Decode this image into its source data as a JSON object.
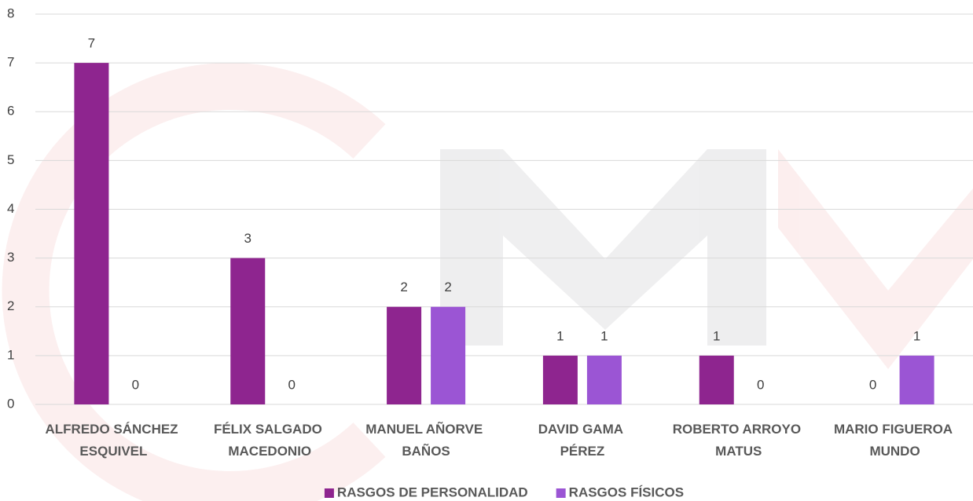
{
  "chart_data": {
    "type": "bar",
    "categories": [
      "ALFREDO SÁNCHEZ ESQUIVEL",
      "FÉLIX SALGADO MACEDONIO",
      "MANUEL AÑORVE BAÑOS",
      "DAVID GAMA PÉREZ",
      "ROBERTO ARROYO MATUS",
      "MARIO FIGUEROA MUNDO"
    ],
    "series": [
      {
        "name": "RASGOS DE PERSONALIDAD",
        "color": "#8e258f",
        "values": [
          7,
          3,
          2,
          1,
          1,
          0
        ]
      },
      {
        "name": "RASGOS FÍSICOS",
        "color": "#9b55d4",
        "values": [
          0,
          0,
          2,
          1,
          0,
          1
        ]
      }
    ],
    "ylim": [
      0,
      8
    ],
    "yticks": [
      0,
      1,
      2,
      3,
      4,
      5,
      6,
      7,
      8
    ],
    "grid": true,
    "legend": "bottom"
  }
}
